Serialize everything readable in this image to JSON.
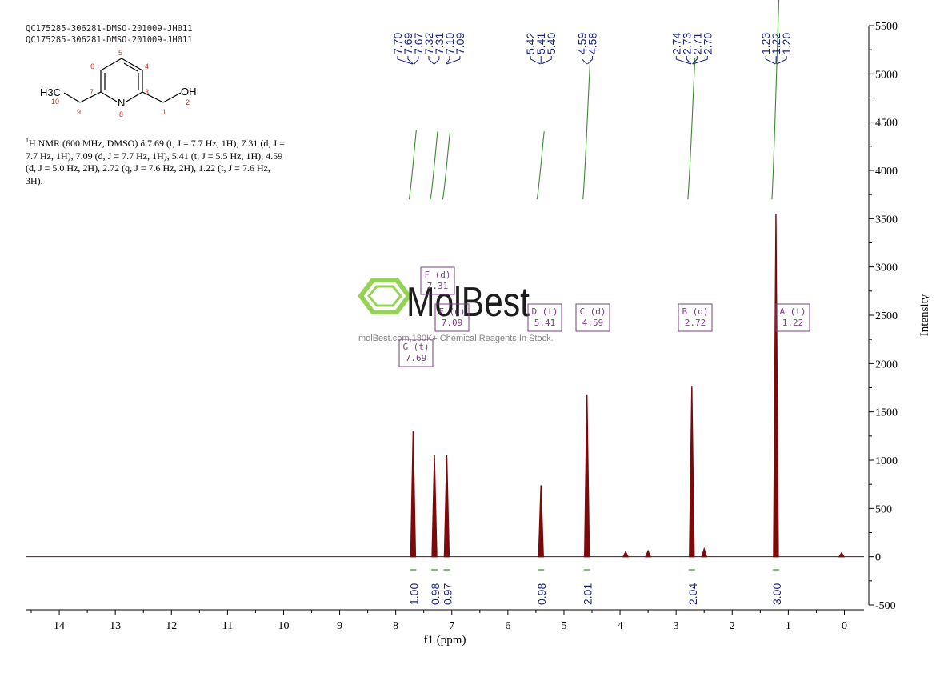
{
  "header": {
    "sample_id_line1": "QC175285-306281-DMSO-201009-JH011",
    "sample_id_line2": "QC175285-306281-DMSO-201009-JH011"
  },
  "molecule": {
    "atom_labels": [
      "H3C",
      "10",
      "9",
      "7",
      "6",
      "5",
      "4",
      "3",
      "N",
      "8",
      "1",
      "OH",
      "2"
    ]
  },
  "nmr_description": {
    "superscript": "1",
    "text": "H NMR (600 MHz, DMSO) δ 7.69 (t, J = 7.7 Hz, 1H), 7.31 (d, J = 7.7 Hz, 1H), 7.09 (d, J = 7.7 Hz, 1H), 5.41 (t, J = 5.5 Hz, 1H), 4.59 (d, J = 5.0 Hz, 2H), 2.72 (q, J = 7.6 Hz, 2H), 1.22 (t, J = 7.6 Hz, 3H)."
  },
  "watermark": {
    "brand": "MolBest",
    "tagline": "molBest.com,180K+ Chemical Reagents In Stock."
  },
  "colors": {
    "spectrum": "#7a0b0b",
    "peak_labels": "#1a237e",
    "integral_curves": "#3a8a2e",
    "multiplet_boxes": "#7b3f87",
    "axis": "#000000",
    "watermark_green": "#8fd14f"
  },
  "chart_data": {
    "type": "line",
    "xlabel": "f1 (ppm)",
    "ylabel": "Intensity",
    "xlim": [
      14.6,
      -0.35
    ],
    "ylim": [
      -500,
      5500
    ],
    "x_ticks": [
      14,
      13,
      12,
      11,
      10,
      9,
      8,
      7,
      6,
      5,
      4,
      3,
      2,
      1,
      0
    ],
    "y_ticks": [
      5500,
      5000,
      4500,
      4000,
      3500,
      3000,
      2500,
      2000,
      1500,
      1000,
      500,
      0,
      -500
    ],
    "peaks": [
      {
        "shift": 7.69,
        "height": 1300
      },
      {
        "shift": 7.31,
        "height": 1050
      },
      {
        "shift": 7.09,
        "height": 1050
      },
      {
        "shift": 5.41,
        "height": 740
      },
      {
        "shift": 4.59,
        "height": 1680
      },
      {
        "shift": 2.72,
        "height": 1770
      },
      {
        "shift": 1.22,
        "height": 3550
      },
      {
        "shift": 3.5,
        "height": 60
      },
      {
        "shift": 3.9,
        "height": 50
      },
      {
        "shift": 2.5,
        "height": 80
      },
      {
        "shift": 0.05,
        "height": 40
      }
    ],
    "peak_label_groups": [
      {
        "labels": [
          "7.70",
          "7.69",
          "7.67",
          "7.32",
          "7.31",
          "7.10",
          "7.09"
        ],
        "shifts": [
          7.7,
          7.69,
          7.67,
          7.32,
          7.31,
          7.1,
          7.09
        ]
      },
      {
        "labels": [
          "5.42",
          "5.41",
          "5.40"
        ],
        "shifts": [
          5.42,
          5.41,
          5.4
        ]
      },
      {
        "labels": [
          "4.59",
          "4.58"
        ],
        "shifts": [
          4.59,
          4.58
        ]
      },
      {
        "labels": [
          "2.74",
          "2.73",
          "2.71",
          "2.70"
        ],
        "shifts": [
          2.74,
          2.73,
          2.71,
          2.7
        ]
      },
      {
        "labels": [
          "1.23",
          "1.22",
          "1.20"
        ],
        "shifts": [
          1.23,
          1.22,
          1.2
        ]
      }
    ],
    "integrals": [
      {
        "shift": 7.69,
        "value": "1.00"
      },
      {
        "shift": 7.31,
        "value": "0.98"
      },
      {
        "shift": 7.09,
        "value": "0.97"
      },
      {
        "shift": 5.41,
        "value": "0.98"
      },
      {
        "shift": 4.59,
        "value": "2.01"
      },
      {
        "shift": 2.72,
        "value": "2.04"
      },
      {
        "shift": 1.22,
        "value": "3.00"
      }
    ],
    "multiplets": [
      {
        "label": "A (t)",
        "shift_text": "1.22",
        "shift": 1.22
      },
      {
        "label": "B (q)",
        "shift_text": "2.72",
        "shift": 2.72
      },
      {
        "label": "C (d)",
        "shift_text": "4.59",
        "shift": 4.59
      },
      {
        "label": "D (t)",
        "shift_text": "5.41",
        "shift": 5.41
      },
      {
        "label": "E (d)",
        "shift_text": "7.09",
        "shift": 7.09
      },
      {
        "label": "F (d)",
        "shift_text": "7.31",
        "shift": 7.31
      },
      {
        "label": "G (t)",
        "shift_text": "7.69",
        "shift": 7.69
      }
    ]
  }
}
